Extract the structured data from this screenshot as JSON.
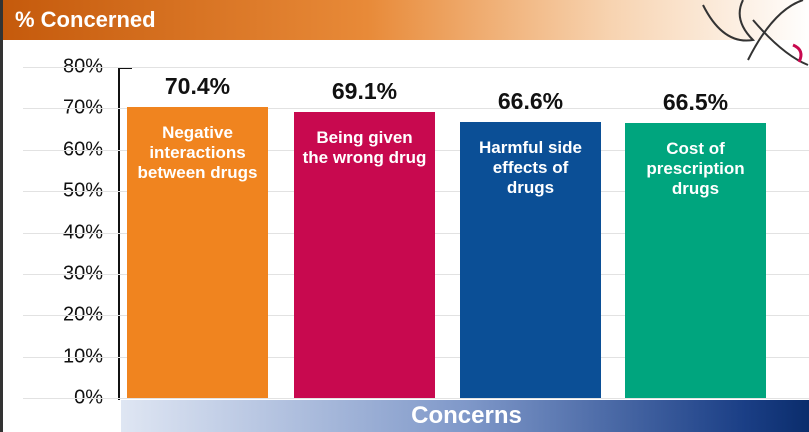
{
  "chart_data": {
    "type": "bar",
    "title": "% Concerned",
    "x_label": "Concerns",
    "categories": [
      "Negative interactions between drugs",
      "Being given the wrong drug",
      "Harmful side effects of drugs",
      "Cost of prescription drugs"
    ],
    "values": [
      70.4,
      69.1,
      66.6,
      66.5
    ],
    "value_labels": [
      "70.4%",
      "69.1%",
      "66.6%",
      "66.5%"
    ],
    "colors": [
      "#f0841f",
      "#c8094f",
      "#0b4f96",
      "#00a57e"
    ],
    "ylim": [
      0,
      80
    ],
    "yticks": [
      {
        "value": 0,
        "label": "0%"
      },
      {
        "value": 10,
        "label": "10%"
      },
      {
        "value": 20,
        "label": "20%"
      },
      {
        "value": 30,
        "label": "30%"
      },
      {
        "value": 40,
        "label": "40%"
      },
      {
        "value": 50,
        "label": "50%"
      },
      {
        "value": 60,
        "label": "60%"
      },
      {
        "value": 70,
        "label": "70%"
      },
      {
        "value": 80,
        "label": "80%"
      }
    ],
    "grid": true
  }
}
